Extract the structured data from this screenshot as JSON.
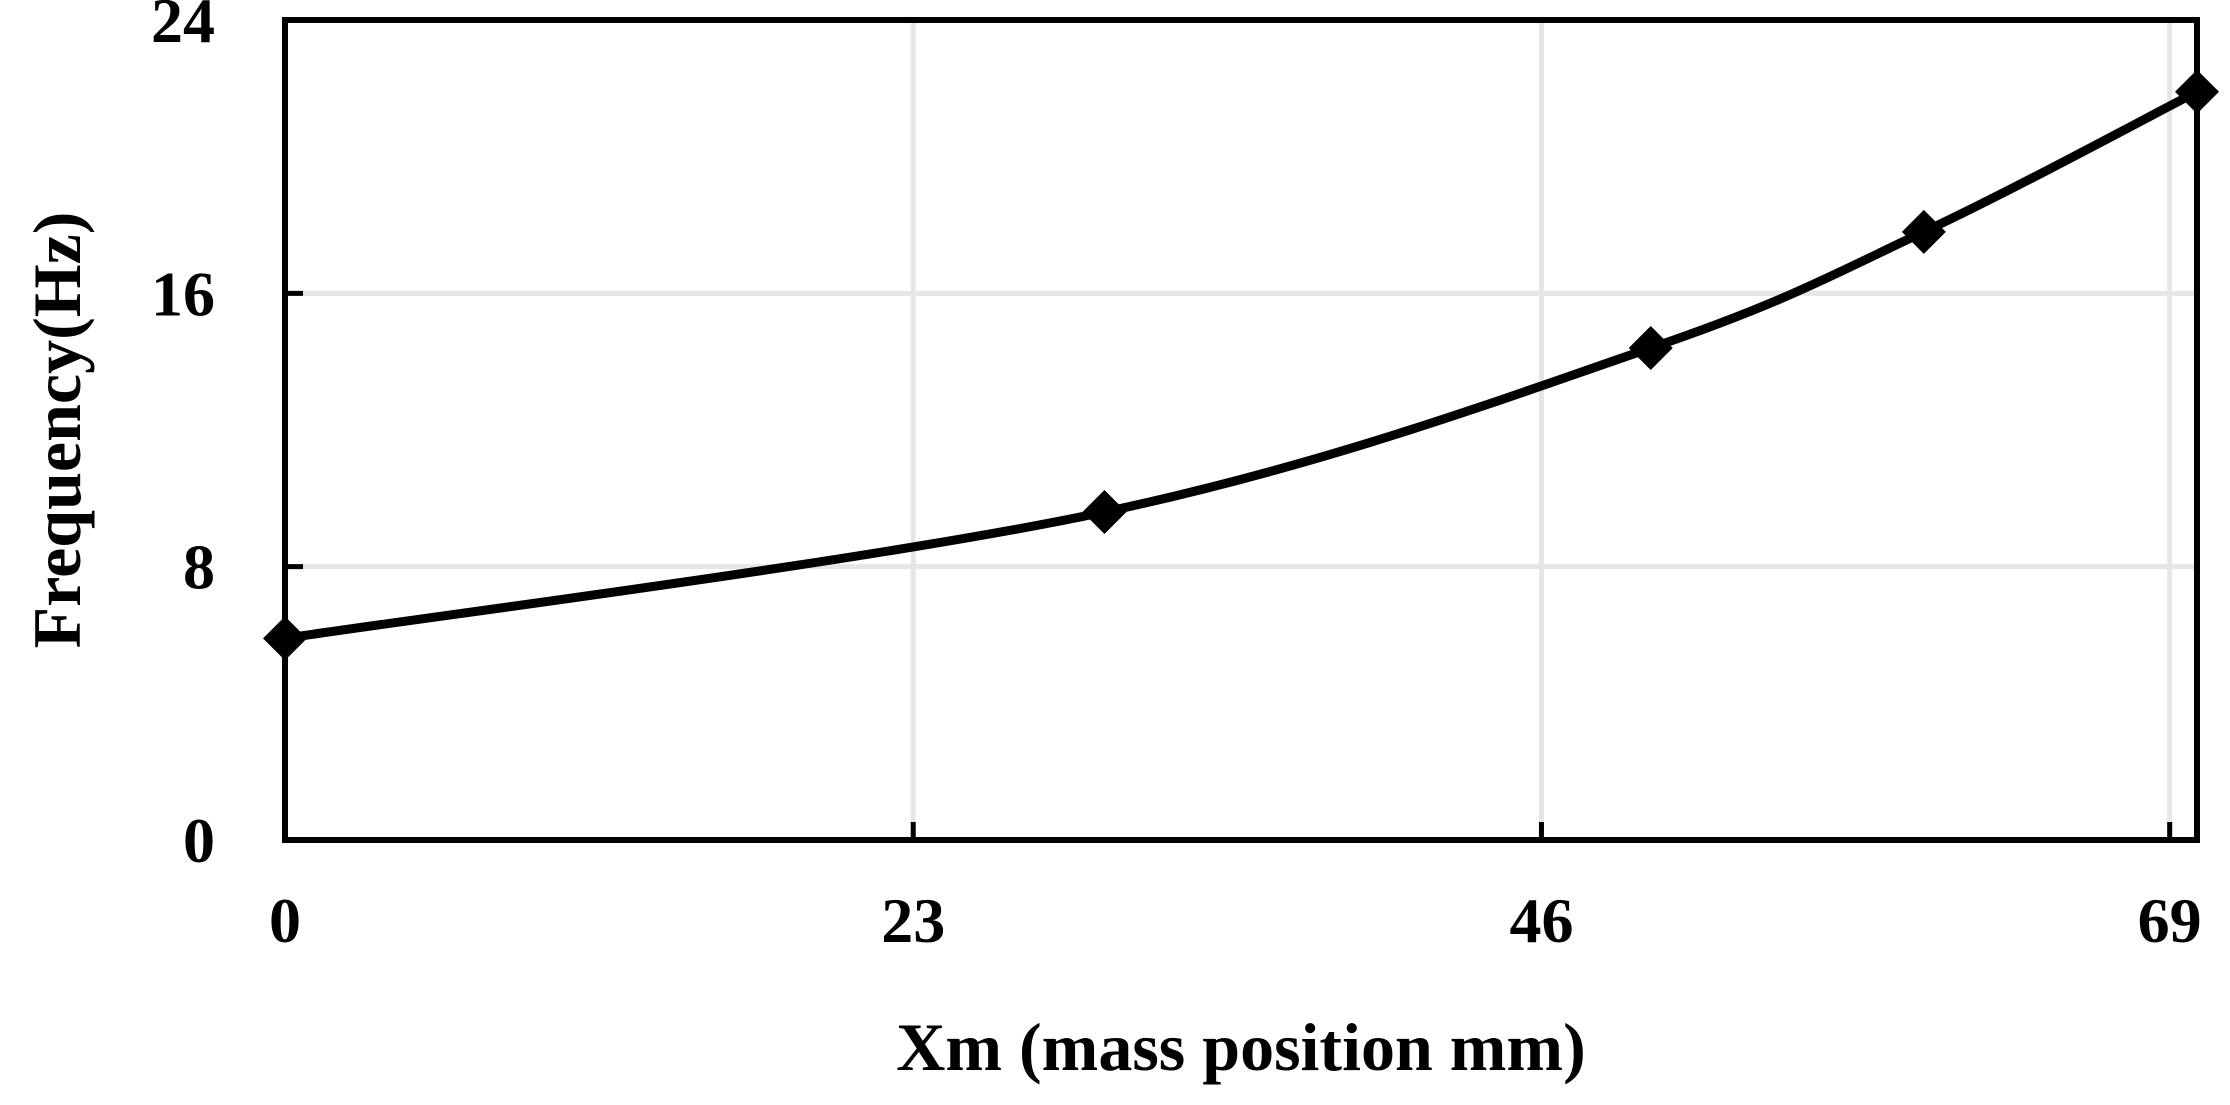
{
  "chart_data": {
    "type": "line",
    "title": "",
    "xlabel": "Xm (mass position mm)",
    "ylabel": "Frequency(Hz)",
    "xlim": [
      0,
      70
    ],
    "ylim": [
      0,
      24
    ],
    "xticks": [
      0,
      23,
      46,
      69
    ],
    "yticks": [
      0,
      8,
      16,
      24
    ],
    "x_tick_labels": [
      "0",
      "23",
      "46",
      "69"
    ],
    "y_tick_labels": [
      "0",
      "8",
      "16",
      "24"
    ],
    "grid": true,
    "legend": "none",
    "series": [
      {
        "name": "Frequency",
        "marker": "diamond",
        "color": "#000000",
        "x": [
          0,
          30,
          50,
          60,
          70
        ],
        "y": [
          5.9,
          9.6,
          14.4,
          17.8,
          21.9
        ]
      }
    ]
  }
}
